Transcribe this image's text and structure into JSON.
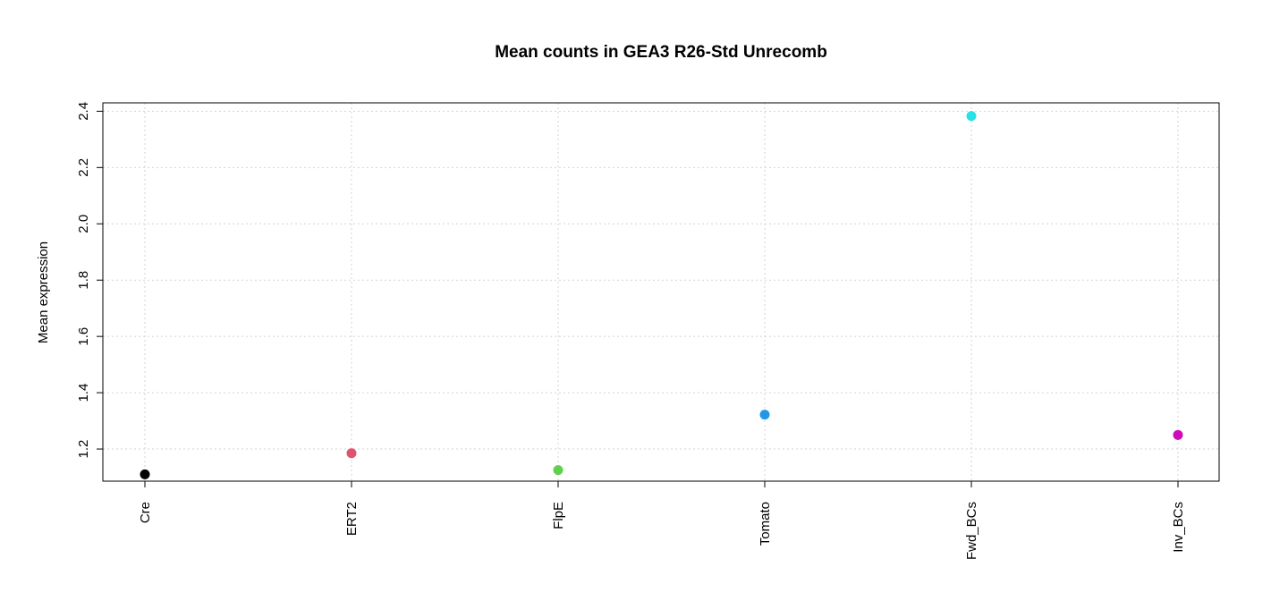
{
  "chart_data": {
    "type": "scatter",
    "title": "Mean counts in GEA3 R26-Std Unrecomb",
    "xlabel": "",
    "ylabel": "Mean expression",
    "categories": [
      "Cre",
      "ERT2",
      "FlpE",
      "Tomato",
      "Fwd_BCs",
      "Inv_BCs"
    ],
    "values": [
      1.11,
      1.185,
      1.125,
      1.322,
      2.383,
      1.25
    ],
    "point_colors": [
      "#000000",
      "#DF536B",
      "#61D04F",
      "#2297E6",
      "#28E2E5",
      "#CD0BBC"
    ],
    "y_ticks": [
      1.2,
      1.4,
      1.6,
      1.8,
      2.0,
      2.2,
      2.4
    ],
    "y_tick_labels": [
      "1.2",
      "1.4",
      "1.6",
      "1.8",
      "2.0",
      "2.2",
      "2.4"
    ],
    "ylim": [
      1.0858,
      2.4298
    ],
    "grid": true,
    "legend": "none"
  }
}
